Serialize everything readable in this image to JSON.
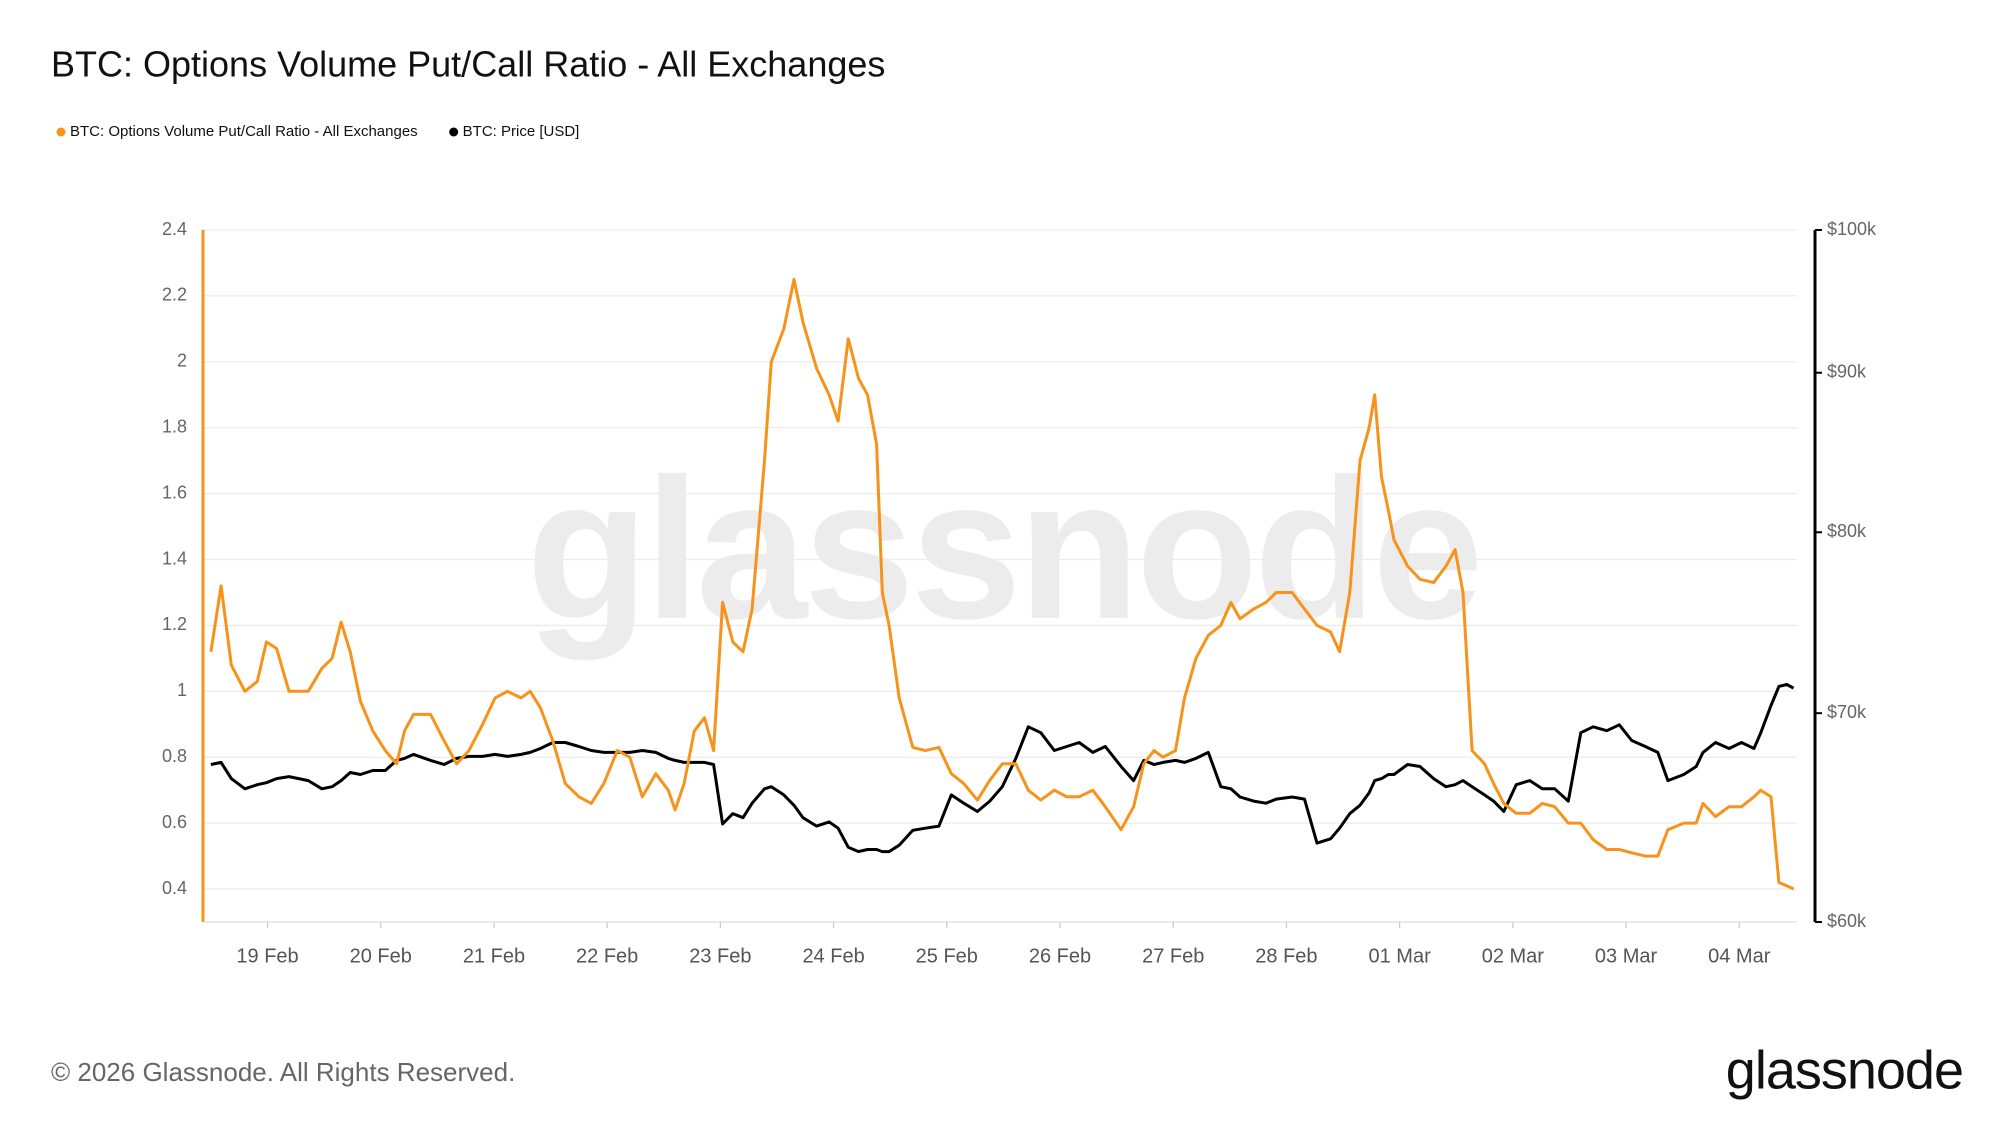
{
  "watermark": "glassnode",
  "footer": "© 2026 Glassnode. All Rights Reserved.",
  "logo": "glassnode",
  "chart_data": {
    "type": "line",
    "title": "BTC: Options Volume Put/Call Ratio - All Exchanges",
    "x": [
      18.5,
      18.59,
      18.68,
      18.8,
      18.91,
      18.99,
      19.08,
      19.19,
      19.36,
      19.48,
      19.57,
      19.65,
      19.73,
      19.82,
      19.93,
      20.04,
      20.14,
      20.21,
      20.29,
      20.44,
      20.56,
      20.67,
      20.78,
      20.9,
      21.01,
      21.12,
      21.24,
      21.32,
      21.41,
      21.52,
      21.63,
      21.75,
      21.86,
      21.97,
      22.09,
      22.2,
      22.31,
      22.43,
      22.54,
      22.6,
      22.68,
      22.77,
      22.86,
      22.94,
      23.02,
      23.11,
      23.2,
      23.28,
      23.39,
      23.45,
      23.56,
      23.65,
      23.73,
      23.85,
      23.96,
      24.04,
      24.13,
      24.22,
      24.3,
      24.38,
      24.43,
      24.49,
      24.58,
      24.7,
      24.81,
      24.93,
      25.04,
      25.15,
      25.27,
      25.38,
      25.49,
      25.61,
      25.72,
      25.83,
      25.95,
      26.06,
      26.17,
      26.29,
      26.4,
      26.54,
      26.65,
      26.74,
      26.83,
      26.91,
      27.02,
      27.1,
      27.2,
      27.31,
      27.42,
      27.51,
      27.59,
      27.71,
      27.82,
      27.91,
      28.05,
      28.16,
      28.27,
      28.39,
      28.47,
      28.56,
      28.65,
      28.73,
      28.78,
      28.84,
      28.9,
      28.95,
      29.07,
      29.18,
      29.3,
      29.41,
      29.49,
      29.56,
      29.64,
      29.75,
      29.83,
      29.92,
      30.03,
      30.15,
      30.26,
      30.37,
      30.49,
      30.6,
      30.71,
      30.83,
      30.94,
      31.05,
      31.17,
      31.28,
      31.37,
      31.51,
      31.62,
      31.68,
      31.79,
      31.91,
      32.02,
      32.13,
      32.19,
      32.28,
      32.35,
      32.42,
      32.48
    ],
    "xlim": [
      18.43,
      32.51
    ],
    "xticks": [
      {
        "value": 19,
        "label": "19 Feb"
      },
      {
        "value": 20,
        "label": "20 Feb"
      },
      {
        "value": 21,
        "label": "21 Feb"
      },
      {
        "value": 22,
        "label": "22 Feb"
      },
      {
        "value": 23,
        "label": "23 Feb"
      },
      {
        "value": 24,
        "label": "24 Feb"
      },
      {
        "value": 25,
        "label": "25 Feb"
      },
      {
        "value": 26,
        "label": "26 Feb"
      },
      {
        "value": 27,
        "label": "27 Feb"
      },
      {
        "value": 28,
        "label": "28 Feb"
      },
      {
        "value": 29,
        "label": "01 Mar"
      },
      {
        "value": 30,
        "label": "02 Mar"
      },
      {
        "value": 31,
        "label": "03 Mar"
      },
      {
        "value": 32,
        "label": "04 Mar"
      }
    ],
    "ylim": [
      0.3,
      2.4
    ],
    "yticks": [
      0.4,
      0.6,
      0.8,
      1,
      1.2,
      1.4,
      1.6,
      1.8,
      2,
      2.2,
      2.4
    ],
    "y2lim": [
      60000,
      100000
    ],
    "y2log": true,
    "y2ticks": [
      {
        "value": 60000,
        "label": "$60k"
      },
      {
        "value": 70000,
        "label": "$70k"
      },
      {
        "value": 80000,
        "label": "$80k"
      },
      {
        "value": 90000,
        "label": "$90k"
      },
      {
        "value": 100000,
        "label": "$100k"
      }
    ],
    "grid": true,
    "legend": "top-left",
    "series": [
      {
        "name": "BTC: Options Volume Put/Call Ratio - All Exchanges",
        "color": "#f7931a",
        "values": [
          1.12,
          1.32,
          1.08,
          1.0,
          1.03,
          1.15,
          1.13,
          1.0,
          1.0,
          1.07,
          1.1,
          1.21,
          1.12,
          0.97,
          0.88,
          0.82,
          0.78,
          0.88,
          0.93,
          0.93,
          0.85,
          0.78,
          0.82,
          0.9,
          0.98,
          1.0,
          0.98,
          1.0,
          0.95,
          0.85,
          0.72,
          0.68,
          0.66,
          0.72,
          0.82,
          0.8,
          0.68,
          0.75,
          0.7,
          0.64,
          0.72,
          0.88,
          0.92,
          0.82,
          1.27,
          1.15,
          1.12,
          1.25,
          1.7,
          2.0,
          2.1,
          2.25,
          2.12,
          1.98,
          1.9,
          1.82,
          2.07,
          1.95,
          1.9,
          1.75,
          1.3,
          1.2,
          0.98,
          0.83,
          0.82,
          0.83,
          0.75,
          0.72,
          0.67,
          0.73,
          0.78,
          0.78,
          0.7,
          0.67,
          0.7,
          0.68,
          0.68,
          0.7,
          0.65,
          0.58,
          0.65,
          0.78,
          0.82,
          0.8,
          0.82,
          0.98,
          1.1,
          1.17,
          1.2,
          1.27,
          1.22,
          1.25,
          1.27,
          1.3,
          1.3,
          1.25,
          1.2,
          1.18,
          1.12,
          1.3,
          1.7,
          1.8,
          1.9,
          1.65,
          1.55,
          1.46,
          1.38,
          1.34,
          1.33,
          1.38,
          1.43,
          1.3,
          0.82,
          0.78,
          0.72,
          0.66,
          0.63,
          0.63,
          0.66,
          0.65,
          0.6,
          0.6,
          0.55,
          0.52,
          0.52,
          0.51,
          0.5,
          0.5,
          0.58,
          0.6,
          0.6,
          0.66,
          0.62,
          0.65,
          0.65,
          0.68,
          0.7,
          0.68,
          0.42,
          0.41,
          0.4
        ]
      },
      {
        "name": "BTC: Price [USD]",
        "color": "#000000",
        "axis": "y2",
        "values": [
          67400,
          67500,
          66700,
          66200,
          66400,
          66500,
          66700,
          66800,
          66600,
          66200,
          66300,
          66600,
          67000,
          66900,
          67100,
          67100,
          67600,
          67700,
          67900,
          67600,
          67400,
          67700,
          67800,
          67800,
          67900,
          67800,
          67900,
          68000,
          68200,
          68500,
          68500,
          68300,
          68100,
          68000,
          68000,
          68000,
          68100,
          68000,
          67700,
          67600,
          67500,
          67500,
          67500,
          67400,
          64500,
          65000,
          64800,
          65500,
          66200,
          66300,
          65900,
          65400,
          64800,
          64400,
          64600,
          64300,
          63400,
          63200,
          63300,
          63300,
          63200,
          63200,
          63500,
          64200,
          64300,
          64400,
          65900,
          65500,
          65100,
          65600,
          66300,
          67700,
          69300,
          69000,
          68100,
          68300,
          68500,
          68000,
          68300,
          67300,
          66600,
          67600,
          67400,
          67500,
          67600,
          67500,
          67700,
          68000,
          66300,
          66200,
          65800,
          65600,
          65500,
          65700,
          65800,
          65700,
          63600,
          63800,
          64300,
          65000,
          65400,
          66000,
          66600,
          66700,
          66900,
          66900,
          67400,
          67300,
          66700,
          66300,
          66400,
          66600,
          66300,
          65900,
          65600,
          65100,
          66400,
          66600,
          66200,
          66200,
          65600,
          69000,
          69300,
          69100,
          69400,
          68600,
          68300,
          68000,
          66600,
          66900,
          67300,
          68000,
          68500,
          68200,
          68500,
          68200,
          69000,
          70400,
          71400,
          71500,
          71300
        ]
      }
    ]
  }
}
